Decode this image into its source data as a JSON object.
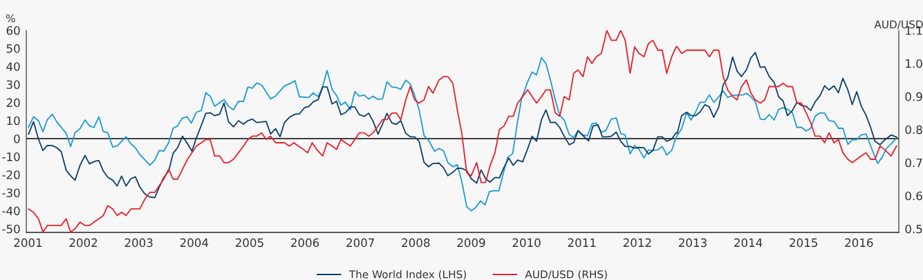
{
  "chart_data": {
    "type": "line",
    "ylabel": "%",
    "y2label": "AUD/USD",
    "xlim": [
      2000.97,
      2016.72
    ],
    "xticks": [
      2001,
      2002,
      2003,
      2004,
      2005,
      2006,
      2007,
      2008,
      2009,
      2010,
      2011,
      2012,
      2013,
      2014,
      2015,
      2016
    ],
    "ylim": [
      -52,
      60
    ],
    "yticks": [
      -50,
      -40,
      -30,
      -20,
      -10,
      0,
      10,
      20,
      30,
      40,
      50,
      60
    ],
    "y2lim": [
      0.489,
      1.1
    ],
    "y2ticks": [
      {
        "value": 0.5,
        "label": "0.5"
      },
      {
        "value": 0.6,
        "label": "0.6"
      },
      {
        "value": 0.7,
        "label": "0.7"
      },
      {
        "value": 0.8,
        "label": "0.8"
      },
      {
        "value": 0.9,
        "label": "0.9"
      },
      {
        "value": 1.0,
        "label": "1.0"
      },
      {
        "value": 1.1,
        "label": "1.1"
      }
    ],
    "ref_lines": [
      {
        "axis": "y",
        "value": 0,
        "color": "#000000"
      }
    ],
    "grid": false,
    "legend": "bottom",
    "marker": "none",
    "line_style": "solid",
    "series": [
      {
        "color": "#1a9bd7",
        "x": [
          2001.01,
          2001.1,
          2001.19,
          2001.27,
          2001.35,
          2001.44,
          2001.52,
          2001.69,
          2001.77,
          2001.85,
          2001.94,
          2002.03,
          2002.11,
          2002.19,
          2002.28,
          2002.36,
          2002.44,
          2002.53,
          2002.61,
          2002.77,
          2002.86,
          2002.94,
          2003.02,
          2003.11,
          2003.2,
          2003.29,
          2003.37,
          2003.45,
          2003.54,
          2003.62,
          2003.7,
          2003.78,
          2003.87,
          2003.95,
          2004.04,
          2004.13,
          2004.21,
          2004.29,
          2004.37,
          2004.54,
          2004.62,
          2004.71,
          2004.8,
          2004.89,
          2004.97,
          2005.05,
          2005.13,
          2005.22,
          2005.38,
          2005.47,
          2005.55,
          2005.63,
          2005.74,
          2005.82,
          2005.9,
          2006.07,
          2006.15,
          2006.24,
          2006.32,
          2006.4,
          2006.49,
          2006.57,
          2006.65,
          2006.73,
          2006.82,
          2006.9,
          2006.98,
          2007.07,
          2007.15,
          2007.23,
          2007.32,
          2007.4,
          2007.48,
          2007.57,
          2007.65,
          2007.73,
          2007.82,
          2007.9,
          2007.98,
          2008.06,
          2008.15,
          2008.23,
          2008.34,
          2008.42,
          2008.5,
          2008.58,
          2008.67,
          2008.75,
          2008.83,
          2008.92,
          2009.0,
          2009.08,
          2009.17,
          2009.25,
          2009.33,
          2009.42,
          2009.5,
          2009.58,
          2009.66,
          2009.75,
          2009.83,
          2009.91,
          2010.02,
          2010.1,
          2010.18,
          2010.27,
          2010.35,
          2010.43,
          2010.52,
          2010.6,
          2010.68,
          2010.77,
          2010.85,
          2010.93,
          2011.02,
          2011.1,
          2011.18,
          2011.26,
          2011.35,
          2011.43,
          2011.53,
          2011.62,
          2011.7,
          2011.78,
          2011.87,
          2011.95,
          2012.03,
          2012.12,
          2012.2,
          2012.28,
          2012.37,
          2012.45,
          2012.53,
          2012.62,
          2012.7,
          2012.8,
          2012.89,
          2012.97,
          2013.05,
          2013.13,
          2013.22,
          2013.3,
          2013.38,
          2013.47,
          2013.55,
          2013.63,
          2013.72,
          2013.8,
          2013.9,
          2013.97,
          2014.05,
          2014.13,
          2014.22,
          2014.3,
          2014.38,
          2014.47,
          2014.55,
          2014.63,
          2014.71,
          2014.8,
          2014.88,
          2014.96,
          2015.05,
          2015.13,
          2015.21,
          2015.3,
          2015.38,
          2015.46,
          2015.55,
          2015.63,
          2015.71,
          2015.8,
          2015.88,
          2015.96,
          2016.04,
          2016.13,
          2016.25,
          2016.34,
          2016.42,
          2016.5,
          2016.58,
          2016.68
        ],
        "values": [
          6.3,
          12.1,
          9.9,
          3.8,
          10.5,
          13.5,
          9.3,
          2.9,
          -4.4,
          3.2,
          5.5,
          10.3,
          7.1,
          6.1,
          12.1,
          3.9,
          3.2,
          -4.7,
          -4.1,
          1.0,
          -3.0,
          -5.1,
          -8.9,
          -11.7,
          -14.8,
          -11.9,
          -6.6,
          -7.0,
          -2.2,
          5.7,
          7.0,
          11.2,
          12.1,
          8.6,
          14.6,
          15.6,
          25.4,
          23.5,
          17.9,
          21.6,
          17.9,
          15.9,
          20.7,
          20.6,
          28.6,
          27.9,
          30.8,
          29.6,
          22.0,
          23.6,
          26.4,
          29.2,
          30.6,
          32.1,
          23.2,
          22.8,
          25.3,
          23.2,
          28.9,
          37.8,
          27.3,
          23.9,
          18.5,
          20.2,
          15.9,
          26.0,
          23.5,
          24.1,
          22.0,
          23.5,
          21.7,
          22.0,
          31.5,
          28.6,
          28.3,
          27.3,
          32.4,
          30.2,
          23.9,
          16.2,
          1.6,
          -0.9,
          -7.0,
          -5.5,
          -6.7,
          -13.3,
          -15.6,
          -14.5,
          -23.7,
          -37.7,
          -40.0,
          -38.3,
          -34.5,
          -36.8,
          -29.4,
          -28.8,
          -29.0,
          -19.3,
          -10.4,
          -8.3,
          8.0,
          22.0,
          31.5,
          36.9,
          35.2,
          44.8,
          41.6,
          32.7,
          21.3,
          12.8,
          10.3,
          2.3,
          0.6,
          4.4,
          1.9,
          1.6,
          8.2,
          8.6,
          3.6,
          4.4,
          10.8,
          11.4,
          2.7,
          2.0,
          -8.5,
          -3.8,
          -6.0,
          -10.7,
          -6.3,
          -6.6,
          -6.2,
          -4.4,
          -9.1,
          -6.6,
          0.6,
          5.5,
          14.3,
          10.3,
          14.6,
          20.1,
          20.1,
          24.2,
          20.1,
          23.2,
          26.4,
          22.8,
          23.9,
          24.1,
          24.2,
          25.1,
          23.2,
          20.4,
          10.8,
          10.5,
          13.3,
          10.3,
          16.2,
          17.1,
          16.2,
          14.3,
          6.1,
          6.3,
          4.2,
          5.7,
          12.4,
          14.3,
          14.1,
          9.9,
          9.6,
          5.7,
          5.7,
          -3.2,
          -0.6,
          -0.6,
          2.0,
          2.5,
          -7.2,
          -13.8,
          -10.2,
          -5.3,
          -3.0,
          0.4
        ]
      },
      {
        "name": "The World Index (LHS)",
        "color": "#0d3f6b",
        "x": [
          2001.01,
          2001.1,
          2001.19,
          2001.27,
          2001.35,
          2001.44,
          2001.52,
          2001.6,
          2001.69,
          2001.77,
          2001.85,
          2001.94,
          2002.03,
          2002.11,
          2002.19,
          2002.28,
          2002.36,
          2002.44,
          2002.53,
          2002.61,
          2002.69,
          2002.77,
          2002.86,
          2002.94,
          2003.02,
          2003.11,
          2003.2,
          2003.29,
          2003.37,
          2003.45,
          2003.54,
          2003.62,
          2003.7,
          2003.79,
          2003.88,
          2003.96,
          2004.04,
          2004.13,
          2004.21,
          2004.29,
          2004.37,
          2004.46,
          2004.54,
          2004.62,
          2004.71,
          2004.8,
          2004.89,
          2004.97,
          2005.05,
          2005.13,
          2005.3,
          2005.38,
          2005.47,
          2005.55,
          2005.63,
          2005.72,
          2005.82,
          2005.9,
          2005.99,
          2006.07,
          2006.15,
          2006.24,
          2006.32,
          2006.4,
          2006.49,
          2006.57,
          2006.65,
          2006.73,
          2006.82,
          2006.9,
          2006.98,
          2007.07,
          2007.15,
          2007.23,
          2007.32,
          2007.4,
          2007.48,
          2007.57,
          2007.65,
          2007.73,
          2007.82,
          2007.9,
          2007.98,
          2008.06,
          2008.15,
          2008.23,
          2008.31,
          2008.42,
          2008.5,
          2008.58,
          2008.67,
          2008.75,
          2008.83,
          2008.92,
          2009.0,
          2009.1,
          2009.18,
          2009.26,
          2009.34,
          2009.43,
          2009.51,
          2009.59,
          2009.68,
          2009.76,
          2009.84,
          2009.93,
          2010.02,
          2010.1,
          2010.18,
          2010.27,
          2010.35,
          2010.43,
          2010.52,
          2010.6,
          2010.68,
          2010.77,
          2010.85,
          2010.93,
          2011.02,
          2011.12,
          2011.2,
          2011.29,
          2011.37,
          2011.45,
          2011.53,
          2011.62,
          2011.7,
          2011.78,
          2011.87,
          2011.95,
          2012.03,
          2012.12,
          2012.2,
          2012.28,
          2012.37,
          2012.45,
          2012.53,
          2012.62,
          2012.7,
          2012.72,
          2012.8,
          2012.89,
          2012.97,
          2013.05,
          2013.13,
          2013.22,
          2013.3,
          2013.38,
          2013.47,
          2013.55,
          2013.63,
          2013.72,
          2013.8,
          2013.88,
          2013.97,
          2014.05,
          2014.13,
          2014.22,
          2014.3,
          2014.38,
          2014.47,
          2014.55,
          2014.63,
          2014.71,
          2014.8,
          2014.88,
          2014.96,
          2015.05,
          2015.13,
          2015.21,
          2015.3,
          2015.38,
          2015.46,
          2015.55,
          2015.63,
          2015.71,
          2015.8,
          2015.88,
          2015.96,
          2016.04,
          2016.13,
          2016.21,
          2016.29,
          2016.38,
          2016.46,
          2016.58,
          2016.68
        ],
        "values": [
          2.5,
          9.3,
          -0.3,
          -6.6,
          -3.8,
          -3.9,
          -5.1,
          -7.2,
          -17.6,
          -20.6,
          -23.1,
          -14.8,
          -9.4,
          -14.0,
          -12.8,
          -12.1,
          -18.0,
          -21.4,
          -23.1,
          -26.3,
          -20.8,
          -26.3,
          -22.2,
          -21.2,
          -26.9,
          -30.7,
          -32.4,
          -32.7,
          -26.9,
          -21.6,
          -18.0,
          -8.2,
          -5.1,
          1.3,
          -2.8,
          -7.0,
          0.4,
          7.4,
          14.0,
          14.3,
          12.7,
          13.5,
          19.8,
          9.3,
          6.5,
          9.9,
          8.0,
          9.9,
          10.8,
          8.9,
          9.5,
          2.5,
          5.5,
          1.0,
          8.9,
          11.8,
          13.5,
          13.7,
          17.1,
          17.8,
          20.4,
          21.6,
          28.6,
          28.6,
          19.2,
          20.7,
          13.3,
          14.3,
          17.5,
          17.5,
          13.3,
          12.3,
          14.0,
          9.6,
          2.4,
          8.0,
          14.0,
          8.6,
          7.9,
          9.9,
          2.9,
          1.0,
          1.0,
          -1.5,
          -13.2,
          -15.6,
          -13.8,
          -13.6,
          -16.1,
          -20.6,
          -18.7,
          -16.4,
          -16.5,
          -17.8,
          -22.2,
          -24.7,
          -17.4,
          -22.2,
          -24.1,
          -21.6,
          -21.8,
          -16.1,
          -10.8,
          -14.8,
          -11.9,
          -12.9,
          -5.7,
          1.3,
          -1.5,
          10.5,
          15.9,
          8.9,
          9.0,
          6.1,
          1.3,
          -3.4,
          -2.2,
          4.4,
          1.6,
          -1.3,
          7.0,
          7.6,
          1.0,
          1.0,
          1.3,
          3.6,
          -1.5,
          -4.4,
          -4.4,
          -5.3,
          -4.9,
          -5.1,
          -8.5,
          -6.6,
          1.0,
          1.0,
          -1.5,
          -0.3,
          3.2,
          2.9,
          12.7,
          14.6,
          12.7,
          12.7,
          14.7,
          18.8,
          17.5,
          11.8,
          17.5,
          29.9,
          33.6,
          45.2,
          37.4,
          34.4,
          38.2,
          44.8,
          47.7,
          39.5,
          39.8,
          34.4,
          31.1,
          23.2,
          20.9,
          12.7,
          15.6,
          20.1,
          18.4,
          17.8,
          15.6,
          20.4,
          23.9,
          29.3,
          27.0,
          29.2,
          25.4,
          33.4,
          27.0,
          18.8,
          26.0,
          18.1,
          12.8,
          6.3,
          -1.5,
          -3.4,
          -0.9,
          2.0,
          0.8
        ]
      },
      {
        "name": "AUD/USD (RHS)",
        "color": "#e8202a",
        "axis": "y2",
        "x": [
          2001.01,
          2001.1,
          2001.19,
          2001.27,
          2001.35,
          2001.44,
          2001.52,
          2001.6,
          2001.69,
          2001.77,
          2001.85,
          2001.94,
          2002.03,
          2002.11,
          2002.19,
          2002.28,
          2002.36,
          2002.44,
          2002.53,
          2002.61,
          2002.69,
          2002.77,
          2002.86,
          2002.94,
          2003.02,
          2003.11,
          2003.2,
          2003.29,
          2003.37,
          2003.45,
          2003.54,
          2003.62,
          2003.7,
          2003.79,
          2003.88,
          2003.96,
          2004.04,
          2004.13,
          2004.21,
          2004.29,
          2004.37,
          2004.46,
          2004.54,
          2004.62,
          2004.71,
          2004.8,
          2004.89,
          2004.97,
          2005.05,
          2005.13,
          2005.22,
          2005.3,
          2005.38,
          2005.47,
          2005.55,
          2005.63,
          2005.72,
          2005.8,
          2005.88,
          2005.97,
          2006.05,
          2006.13,
          2006.21,
          2006.32,
          2006.4,
          2006.49,
          2006.57,
          2006.65,
          2006.73,
          2006.82,
          2006.9,
          2006.98,
          2007.07,
          2007.15,
          2007.23,
          2007.32,
          2007.4,
          2007.48,
          2007.57,
          2007.65,
          2007.73,
          2007.82,
          2007.9,
          2007.98,
          2008.06,
          2008.15,
          2008.23,
          2008.31,
          2008.42,
          2008.5,
          2008.58,
          2008.67,
          2008.75,
          2008.83,
          2008.92,
          2009.0,
          2009.1,
          2009.18,
          2009.26,
          2009.34,
          2009.43,
          2009.51,
          2009.59,
          2009.68,
          2009.76,
          2009.84,
          2009.93,
          2010.02,
          2010.1,
          2010.18,
          2010.27,
          2010.35,
          2010.43,
          2010.52,
          2010.6,
          2010.68,
          2010.77,
          2010.85,
          2010.93,
          2011.02,
          2011.1,
          2011.18,
          2011.26,
          2011.35,
          2011.45,
          2011.53,
          2011.62,
          2011.7,
          2011.78,
          2011.87,
          2011.95,
          2012.03,
          2012.12,
          2012.2,
          2012.28,
          2012.37,
          2012.45,
          2012.53,
          2012.62,
          2012.7,
          2012.72,
          2012.8,
          2012.89,
          2012.97,
          2013.05,
          2013.13,
          2013.22,
          2013.3,
          2013.38,
          2013.47,
          2013.55,
          2013.63,
          2013.72,
          2013.8,
          2013.88,
          2013.97,
          2014.05,
          2014.13,
          2014.22,
          2014.3,
          2014.38,
          2014.47,
          2014.55,
          2014.63,
          2014.71,
          2014.8,
          2014.88,
          2014.96,
          2015.05,
          2015.13,
          2015.21,
          2015.3,
          2015.38,
          2015.46,
          2015.55,
          2015.63,
          2015.71,
          2015.8,
          2015.88,
          2015.96,
          2016.04,
          2016.13,
          2016.21,
          2016.29,
          2016.38,
          2016.46,
          2016.58,
          2016.68
        ],
        "values": [
          0.56,
          0.55,
          0.53,
          0.49,
          0.51,
          0.51,
          0.51,
          0.51,
          0.53,
          0.49,
          0.5,
          0.52,
          0.51,
          0.51,
          0.52,
          0.53,
          0.54,
          0.57,
          0.56,
          0.54,
          0.55,
          0.54,
          0.56,
          0.56,
          0.56,
          0.59,
          0.61,
          0.61,
          0.63,
          0.65,
          0.68,
          0.65,
          0.65,
          0.68,
          0.71,
          0.73,
          0.75,
          0.76,
          0.77,
          0.77,
          0.72,
          0.72,
          0.7,
          0.7,
          0.71,
          0.73,
          0.75,
          0.77,
          0.78,
          0.78,
          0.79,
          0.77,
          0.78,
          0.76,
          0.76,
          0.76,
          0.75,
          0.76,
          0.75,
          0.74,
          0.73,
          0.76,
          0.74,
          0.72,
          0.76,
          0.75,
          0.74,
          0.77,
          0.76,
          0.75,
          0.77,
          0.79,
          0.79,
          0.78,
          0.79,
          0.81,
          0.83,
          0.83,
          0.85,
          0.85,
          0.83,
          0.89,
          0.93,
          0.89,
          0.88,
          0.89,
          0.93,
          0.91,
          0.95,
          0.96,
          0.96,
          0.94,
          0.86,
          0.79,
          0.67,
          0.66,
          0.7,
          0.64,
          0.64,
          0.69,
          0.73,
          0.8,
          0.81,
          0.84,
          0.84,
          0.88,
          0.9,
          0.92,
          0.9,
          0.88,
          0.9,
          0.92,
          0.92,
          0.85,
          0.84,
          0.9,
          0.89,
          0.97,
          0.98,
          0.96,
          1.02,
          1.0,
          1.02,
          1.03,
          1.1,
          1.07,
          1.07,
          1.1,
          1.07,
          0.97,
          1.05,
          1.03,
          1.02,
          1.06,
          1.07,
          1.04,
          1.04,
          0.97,
          1.02,
          1.05,
          1.05,
          1.03,
          1.04,
          1.04,
          1.04,
          1.04,
          1.04,
          1.02,
          1.04,
          1.04,
          0.96,
          0.92,
          0.9,
          0.89,
          0.93,
          0.95,
          0.91,
          0.89,
          0.88,
          0.89,
          0.93,
          0.93,
          0.93,
          0.94,
          0.93,
          0.93,
          0.88,
          0.88,
          0.85,
          0.82,
          0.78,
          0.78,
          0.76,
          0.79,
          0.76,
          0.77,
          0.73,
          0.71,
          0.7,
          0.71,
          0.72,
          0.73,
          0.71,
          0.71,
          0.75,
          0.74,
          0.72,
          0.75
        ]
      }
    ]
  }
}
